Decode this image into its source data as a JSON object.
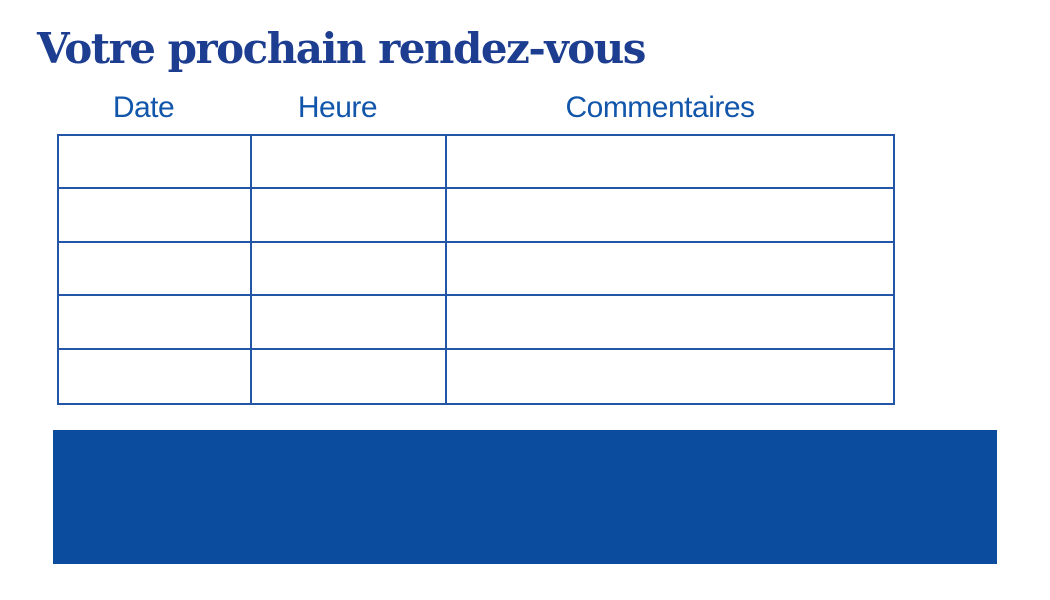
{
  "slide": {
    "title": "Votre prochain rendez-vous"
  },
  "appointments_table": {
    "column_headers": [
      "Date",
      "Heure",
      "Commentaires"
    ],
    "rows": [
      [
        "",
        "",
        ""
      ],
      [
        "",
        "",
        ""
      ],
      [
        "",
        "",
        ""
      ],
      [
        "",
        "",
        ""
      ],
      [
        "",
        "",
        ""
      ]
    ]
  },
  "footer_banner": {
    "text": ""
  },
  "colors": {
    "title_text": "#1d3d90",
    "header_text": "#1156ab",
    "table_border": "#2456a8",
    "banner_fill": "#0c4c9f"
  }
}
